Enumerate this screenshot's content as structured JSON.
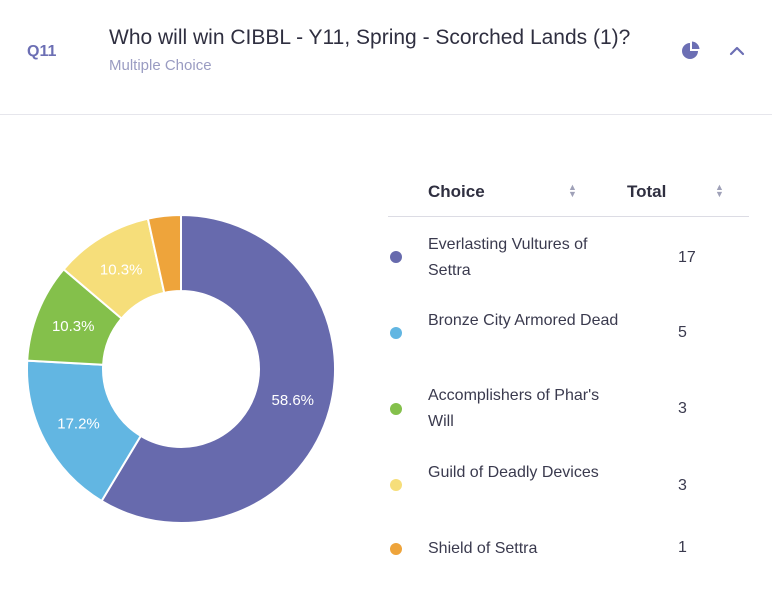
{
  "question": {
    "number": "Q11",
    "title": "Who will win CIBBL - Y11, Spring - Scorched Lands (1)?",
    "type": "Multiple Choice",
    "icons": [
      "pie-chart-icon",
      "chevron-up-icon"
    ]
  },
  "table": {
    "col_choice": "Choice",
    "col_total": "Total",
    "rows": [
      {
        "label": "Everlasting Vultures of Settra",
        "total": "17"
      },
      {
        "label": "Bronze City Armored Dead",
        "total": "5"
      },
      {
        "label": "Accomplishers of Phar's Will",
        "total": "3"
      },
      {
        "label": "Guild of Deadly Devices",
        "total": "3"
      },
      {
        "label": "Shield of Settra",
        "total": "1"
      }
    ]
  },
  "chart_data": {
    "type": "pie",
    "donut": true,
    "categories": [
      "Everlasting Vultures of Settra",
      "Bronze City Armored Dead",
      "Accomplishers of Phar's Will",
      "Guild of Deadly Devices",
      "Shield of Settra"
    ],
    "values": [
      17,
      5,
      3,
      3,
      1
    ],
    "labels": [
      "58.6%",
      "17.2%",
      "10.3%",
      "10.3%",
      ""
    ],
    "colors": [
      "#676aad",
      "#62b6e2",
      "#84c04b",
      "#f6de7a",
      "#eea43b"
    ]
  }
}
